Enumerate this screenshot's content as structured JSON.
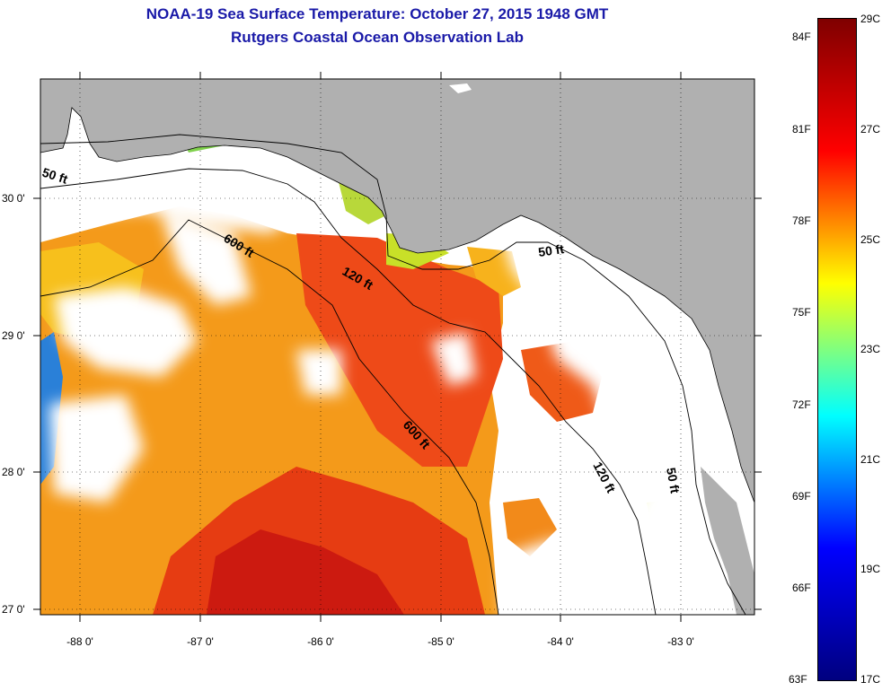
{
  "title": "NOAA-19 Sea Surface Temperature:  October 27, 2015 1948 GMT",
  "subtitle": "Rutgers Coastal Ocean Observation Lab",
  "axes": {
    "lon_labels": [
      "-88 0'",
      "-87 0'",
      "-86 0'",
      "-85 0'",
      "-84 0'",
      "-83 0'"
    ],
    "lat_labels": [
      "30 0'",
      "29 0'",
      "28 0'",
      "27 0'"
    ]
  },
  "contour_labels": {
    "c50_west": "50 ft",
    "c600_north": "600 ft",
    "c120_north": "120 ft",
    "c50_east": "50 ft",
    "c600_south": "600 ft",
    "c120_south": "120 ft",
    "c50_south": "50 ft"
  },
  "colorbar": {
    "fahrenheit": [
      "84F",
      "81F",
      "78F",
      "75F",
      "72F",
      "69F",
      "66F",
      "63F"
    ],
    "celsius": [
      "29C",
      "27C",
      "25C",
      "23C",
      "21C",
      "19C",
      "17C"
    ],
    "stops": [
      "#7f0000",
      "#ff0000",
      "#ffff00",
      "#00ffff",
      "#0000ff",
      "#00007f"
    ]
  },
  "colors": {
    "land": "#b0b0b0",
    "cloud": "#ffffff",
    "title": "#1a1aa8"
  }
}
